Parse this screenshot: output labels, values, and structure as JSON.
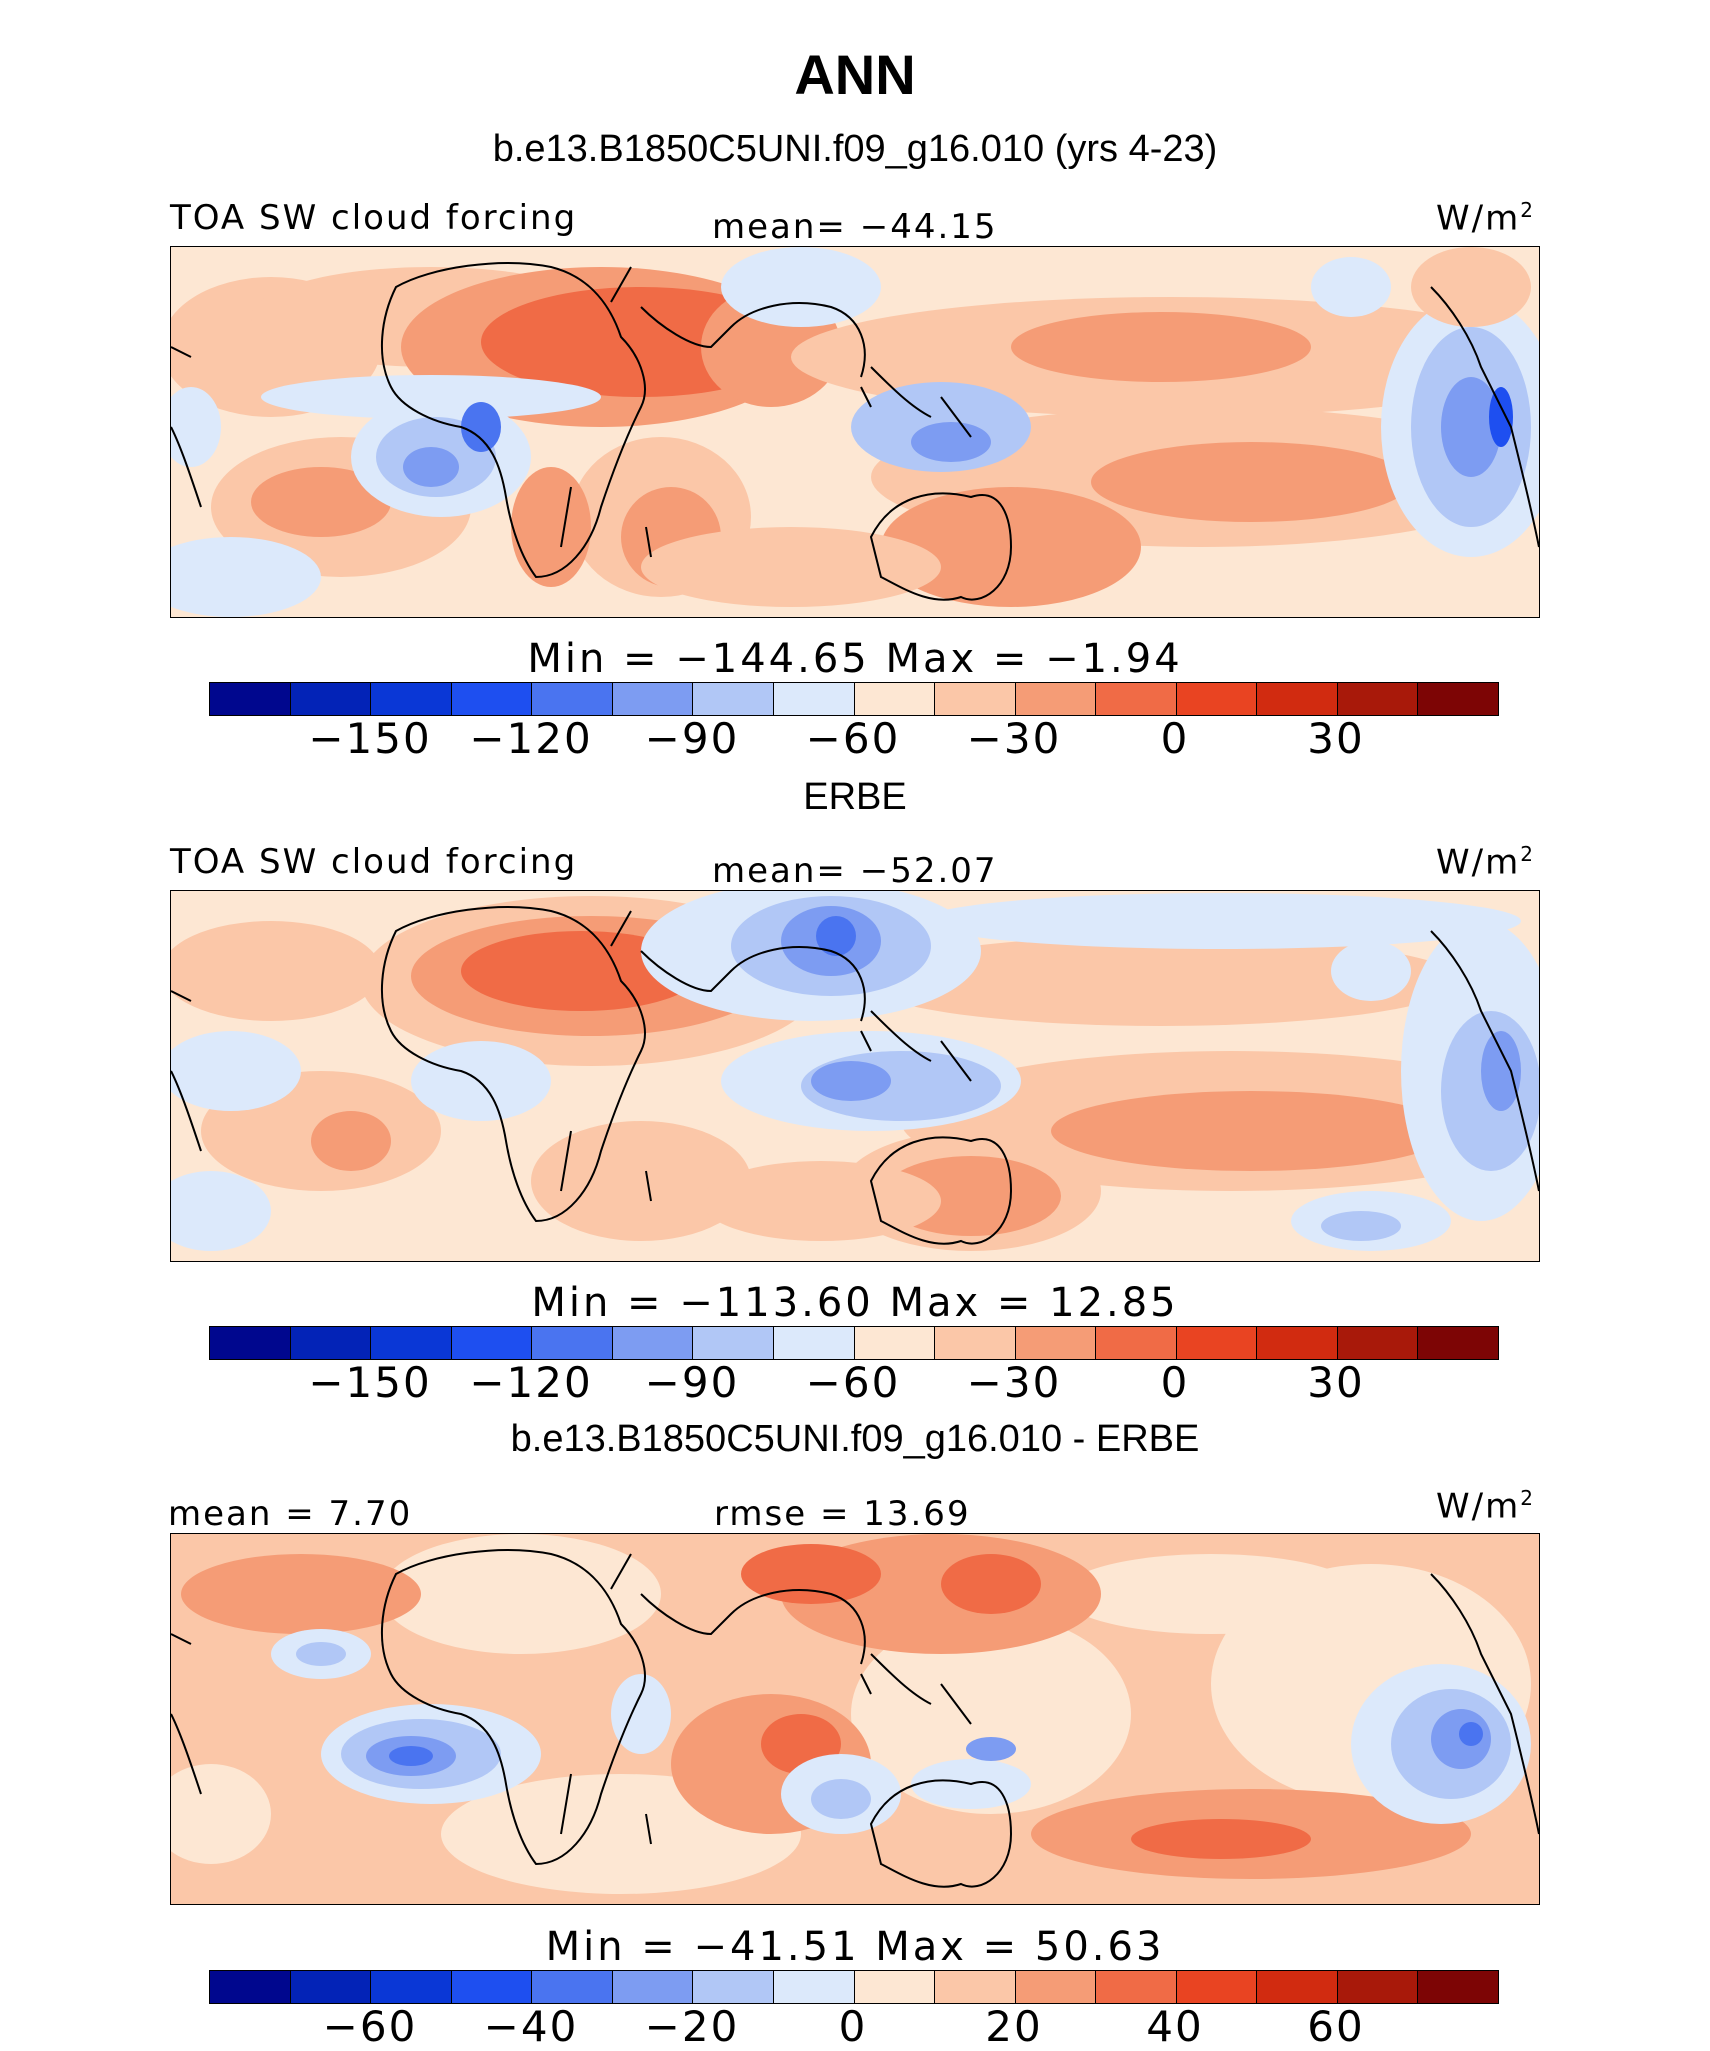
{
  "title": "ANN",
  "panels": [
    {
      "heading": "b.e13.B1850C5UNI.f09_g16.010 (yrs 4-23)",
      "left_label": "TOA SW cloud forcing",
      "center_label": "mean= −44.15",
      "units": "W/m",
      "units_sup": "2",
      "minmax": "Min = −144.65 Max = −1.94",
      "ticks": [
        "−150",
        "−120",
        "−90",
        "−60",
        "−30",
        "0",
        "30"
      ],
      "colors": [
        "#00078e",
        "#0323b7",
        "#0a37d6",
        "#1e4ff0",
        "#4a74f0",
        "#7d9cf2",
        "#b1c7f6",
        "#dce9fb",
        "#fde7d3",
        "#fbc7a8",
        "#f59c76",
        "#f06b46",
        "#e94422",
        "#d12b10",
        "#a8190a",
        "#7d0505"
      ]
    },
    {
      "heading": "ERBE",
      "left_label": "TOA SW cloud forcing",
      "center_label": "mean= −52.07",
      "units": "W/m",
      "units_sup": "2",
      "minmax": "Min = −113.60 Max = 12.85",
      "ticks": [
        "−150",
        "−120",
        "−90",
        "−60",
        "−30",
        "0",
        "30"
      ],
      "colors": [
        "#00078e",
        "#0323b7",
        "#0a37d6",
        "#1e4ff0",
        "#4a74f0",
        "#7d9cf2",
        "#b1c7f6",
        "#dce9fb",
        "#fde7d3",
        "#fbc7a8",
        "#f59c76",
        "#f06b46",
        "#e94422",
        "#d12b10",
        "#a8190a",
        "#7d0505"
      ]
    },
    {
      "heading": "b.e13.B1850C5UNI.f09_g16.010 - ERBE",
      "left_label": "mean = 7.70",
      "center_label": "rmse = 13.69",
      "units": "W/m",
      "units_sup": "2",
      "minmax": "Min = −41.51 Max = 50.63",
      "ticks": [
        "−60",
        "−40",
        "−20",
        "0",
        "20",
        "40",
        "60"
      ],
      "colors": [
        "#00078e",
        "#0323b7",
        "#0a37d6",
        "#1e4ff0",
        "#4a74f0",
        "#7d9cf2",
        "#b1c7f6",
        "#dce9fb",
        "#fde7d3",
        "#fbc7a8",
        "#f59c76",
        "#f06b46",
        "#e94422",
        "#d12b10",
        "#a8190a",
        "#7d0505"
      ]
    }
  ]
}
